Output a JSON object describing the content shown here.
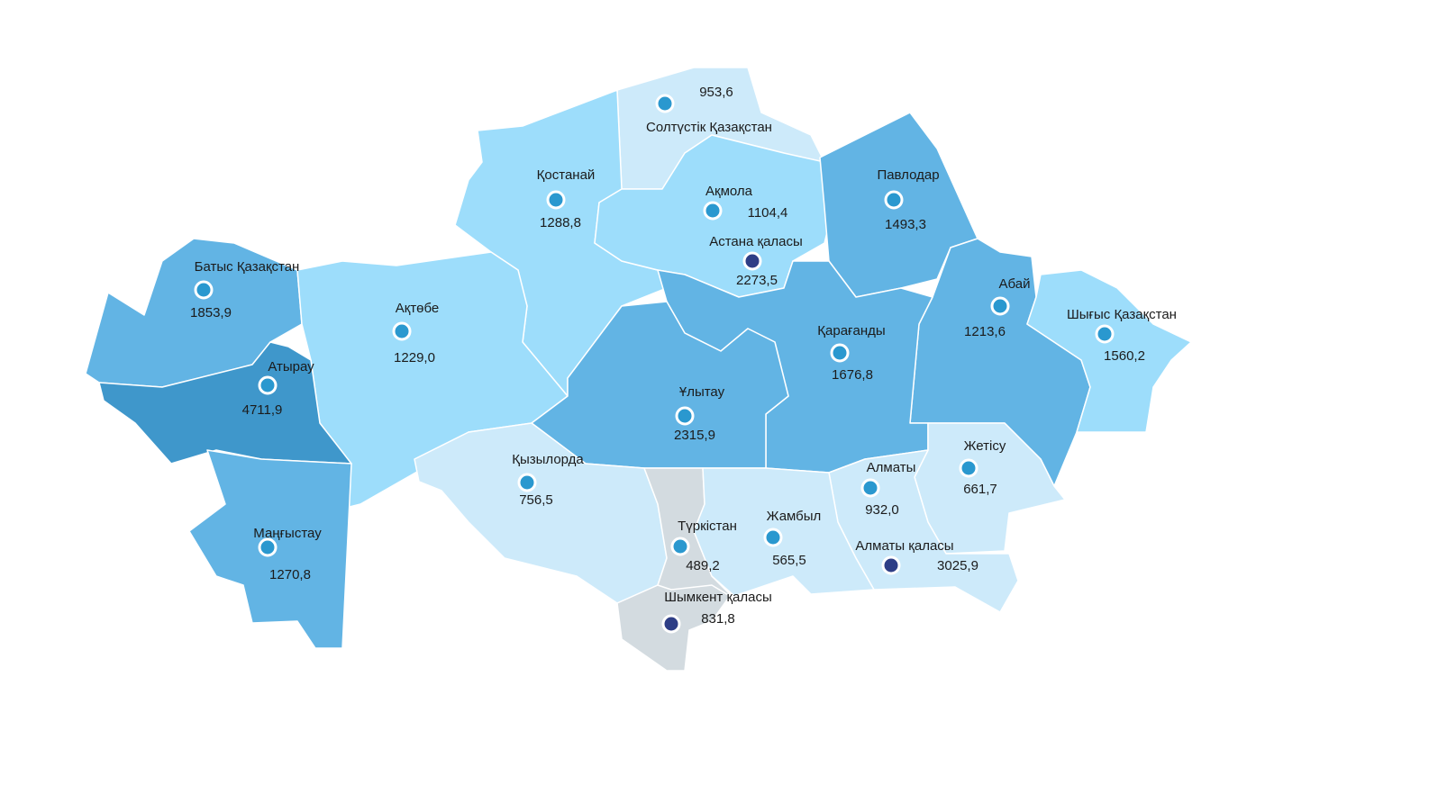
{
  "colors": {
    "level_highest": "#3f97cb",
    "level_high": "#62b4e4",
    "level_mid": "#9dddfb",
    "level_low": "#cdeafa",
    "level_none": "#d3dbe0",
    "region_marker": "#2a98cf",
    "city_marker": "#2e3e86"
  },
  "regions": [
    {
      "name": "Солтүстік Қазақстан",
      "value": "953,6",
      "level": "level_low",
      "marker": "region_marker"
    },
    {
      "name": "Қостанай",
      "value": "1288,8",
      "level": "level_mid",
      "marker": "region_marker"
    },
    {
      "name": "Ақмола",
      "value": "1104,4",
      "level": "level_mid",
      "marker": "region_marker"
    },
    {
      "name": "Павлодар",
      "value": "1493,3",
      "level": "level_high",
      "marker": "region_marker"
    },
    {
      "name": "Астана қаласы",
      "value": "2273,5",
      "level": "level_high",
      "marker": "city_marker"
    },
    {
      "name": "Батыс Қазақстан",
      "value": "1853,9",
      "level": "level_high",
      "marker": "region_marker"
    },
    {
      "name": "Ақтөбе",
      "value": "1229,0",
      "level": "level_mid",
      "marker": "region_marker"
    },
    {
      "name": "Атырау",
      "value": "4711,9",
      "level": "level_highest",
      "marker": "region_marker"
    },
    {
      "name": "Абай",
      "value": "1213,6",
      "level": "level_high",
      "marker": "region_marker"
    },
    {
      "name": "Шығыс Қазақстан",
      "value": "1560,2",
      "level": "level_mid",
      "marker": "region_marker"
    },
    {
      "name": "Қарағанды",
      "value": "1676,8",
      "level": "level_high",
      "marker": "region_marker"
    },
    {
      "name": "Ұлытау",
      "value": "2315,9",
      "level": "level_high",
      "marker": "region_marker"
    },
    {
      "name": "Жетісу",
      "value": "661,7",
      "level": "level_low",
      "marker": "region_marker"
    },
    {
      "name": "Қызылорда",
      "value": "756,5",
      "level": "level_low",
      "marker": "region_marker"
    },
    {
      "name": "Алматы",
      "value": "932,0",
      "level": "level_low",
      "marker": "region_marker"
    },
    {
      "name": "Маңғыстау",
      "value": "1270,8",
      "level": "level_high",
      "marker": "region_marker"
    },
    {
      "name": "Түркістан",
      "value": "489,2",
      "level": "level_none",
      "marker": "region_marker"
    },
    {
      "name": "Жамбыл",
      "value": "565,5",
      "level": "level_low",
      "marker": "region_marker"
    },
    {
      "name": "Алматы қаласы",
      "value": "3025,9",
      "level": "level_low",
      "marker": "city_marker"
    },
    {
      "name": "Шымкент қаласы",
      "value": "831,8",
      "level": "level_none",
      "marker": "city_marker"
    }
  ]
}
